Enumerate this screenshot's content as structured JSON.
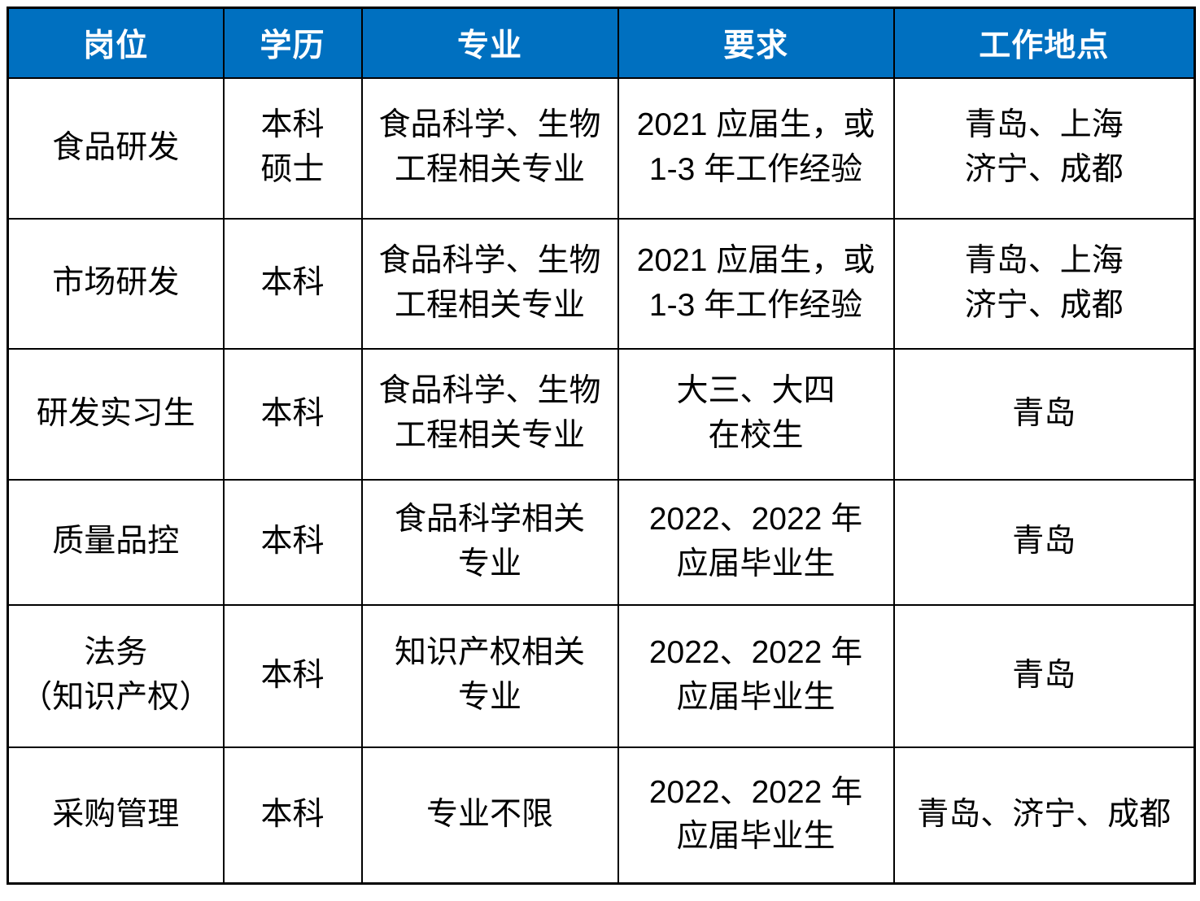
{
  "colors": {
    "header_bg": "#0070C0",
    "header_text": "#FFFFFF",
    "body_text": "#000000",
    "border": "#000000"
  },
  "table": {
    "columns": [
      "岗位",
      "学历",
      "专业",
      "要求",
      "工作地点"
    ],
    "rows": [
      {
        "position": "食品研发",
        "education": "本科\n硕士",
        "major": "食品科学、生物\n工程相关专业",
        "requirement": "2021 应届生，或\n1-3 年工作经验",
        "location": "青岛、上海\n济宁、成都"
      },
      {
        "position": "市场研发",
        "education": "本科",
        "major": "食品科学、生物\n工程相关专业",
        "requirement": "2021 应届生，或\n1-3 年工作经验",
        "location": "青岛、上海\n济宁、成都"
      },
      {
        "position": "研发实习生",
        "education": "本科",
        "major": "食品科学、生物\n工程相关专业",
        "requirement": "大三、大四\n在校生",
        "location": "青岛"
      },
      {
        "position": "质量品控",
        "education": "本科",
        "major": "食品科学相关\n专业",
        "requirement": "2022、2022 年\n应届毕业生",
        "location": "青岛"
      },
      {
        "position": "法务\n（知识产权）",
        "education": "本科",
        "major": "知识产权相关\n专业",
        "requirement": "2022、2022 年\n应届毕业生",
        "location": "青岛"
      },
      {
        "position": "采购管理",
        "education": "本科",
        "major": "专业不限",
        "requirement": "2022、2022 年\n应届毕业生",
        "location": "青岛、济宁、成都"
      }
    ]
  }
}
